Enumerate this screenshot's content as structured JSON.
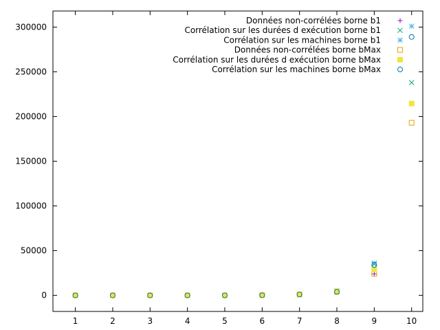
{
  "chart_data": {
    "type": "scatter",
    "title": "",
    "xlabel": "",
    "ylabel": "",
    "xlim": [
      0.4,
      10.3
    ],
    "ylim": [
      -18000,
      318000
    ],
    "xticks": [
      1,
      2,
      3,
      4,
      5,
      6,
      7,
      8,
      9,
      10
    ],
    "yticks": [
      0,
      50000,
      100000,
      150000,
      200000,
      250000,
      300000
    ],
    "grid": false,
    "legend_position": "top-right",
    "series": [
      {
        "name": "Données non-corrélées borne b1",
        "marker": "plus",
        "color": "#9400d3",
        "x": [
          1,
          2,
          3,
          4,
          5,
          6,
          7,
          8,
          9
        ],
        "y": [
          0,
          0,
          0,
          0,
          20,
          150,
          900,
          4200,
          24000
        ]
      },
      {
        "name": "Corrélation sur les durées d exécution borne b1",
        "marker": "cross",
        "color": "#009e73",
        "x": [
          1,
          2,
          3,
          4,
          5,
          6,
          7,
          8,
          9,
          10
        ],
        "y": [
          0,
          0,
          0,
          0,
          30,
          250,
          1300,
          5200,
          35000,
          238000
        ]
      },
      {
        "name": "Corrélation sur les machines borne b1",
        "marker": "star",
        "color": "#56b4e9",
        "x": [
          1,
          2,
          3,
          4,
          5,
          6,
          7,
          8,
          9,
          10
        ],
        "y": [
          0,
          0,
          0,
          0,
          30,
          250,
          1200,
          4800,
          36000,
          301000
        ]
      },
      {
        "name": "Données non-corrélées borne bMax",
        "marker": "square-open",
        "color": "#e69f00",
        "x": [
          1,
          2,
          3,
          4,
          5,
          6,
          7,
          8,
          9,
          10
        ],
        "y": [
          0,
          0,
          0,
          0,
          20,
          180,
          900,
          4000,
          24000,
          193000
        ]
      },
      {
        "name": "Corrélation sur les durées d exécution borne bMax",
        "marker": "square-filled",
        "color": "#f0e442",
        "x": [
          1,
          2,
          3,
          4,
          5,
          6,
          7,
          8,
          9,
          10
        ],
        "y": [
          0,
          0,
          0,
          0,
          25,
          200,
          1000,
          4500,
          29000,
          214500
        ]
      },
      {
        "name": "Corrélation sur les machines borne bMax",
        "marker": "circle-open",
        "color": "#0072b2",
        "x": [
          1,
          2,
          3,
          4,
          5,
          6,
          7,
          8,
          9,
          10
        ],
        "y": [
          0,
          0,
          0,
          0,
          20,
          200,
          1000,
          4000,
          34000,
          289000
        ]
      }
    ]
  }
}
